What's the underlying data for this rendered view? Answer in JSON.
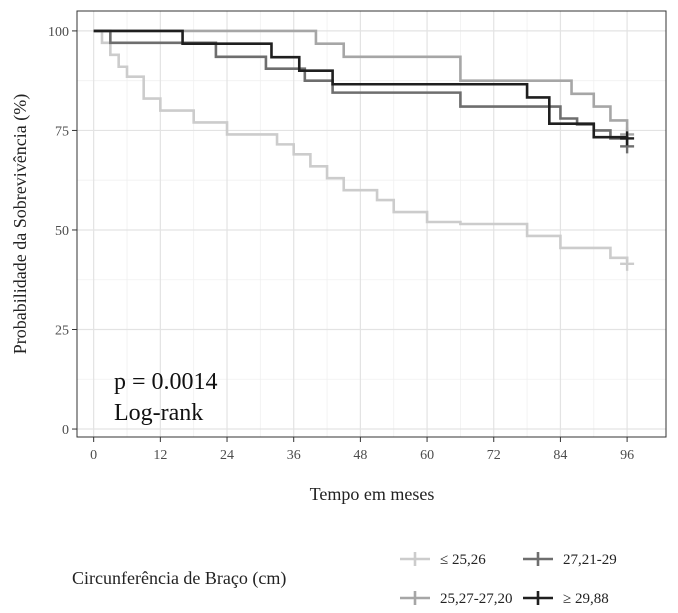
{
  "chart_data": {
    "type": "line",
    "xlabel": "Tempo em meses",
    "ylabel": "Probabilidade da Sobrevivência (%)",
    "xlim": [
      -3,
      103
    ],
    "ylim": [
      -2,
      105
    ],
    "xticks": [
      0,
      12,
      24,
      36,
      48,
      60,
      72,
      84,
      96
    ],
    "yticks": [
      0,
      25,
      50,
      75,
      100
    ],
    "grid": true,
    "annotation": [
      "p = 0.0014",
      "Log-rank"
    ],
    "legend": {
      "title": "Circunferência de Braço (cm)",
      "position": "bottom"
    },
    "series": [
      {
        "name": "≤ 25,26",
        "color": "#cccccc",
        "step_x": [
          0,
          1.5,
          3,
          4.5,
          6,
          9,
          12,
          18,
          24,
          33,
          36,
          39,
          42,
          45,
          51,
          54,
          57,
          60,
          66,
          78,
          84,
          90,
          93,
          96
        ],
        "step_y": [
          100,
          97,
          94,
          91,
          88.5,
          83,
          80,
          77,
          74,
          71.5,
          69,
          66,
          63,
          60,
          57.5,
          54.5,
          54.5,
          52,
          51.5,
          48.5,
          45.5,
          45.5,
          43,
          42
        ],
        "censor_x": [
          96
        ],
        "censor_y": [
          41.5
        ]
      },
      {
        "name": "25,27-27,20",
        "color": "#a6a6a6",
        "step_x": [
          0,
          40,
          45,
          66,
          86,
          90,
          93,
          96
        ],
        "step_y": [
          100,
          96.8,
          93.5,
          87.5,
          84.2,
          81,
          77.5,
          74
        ],
        "censor_x": [
          96
        ],
        "censor_y": [
          74
        ]
      },
      {
        "name": "27,21-29",
        "color": "#6e6e6e",
        "step_x": [
          0,
          3,
          22,
          31,
          38,
          43,
          66,
          84,
          87,
          90,
          93,
          96
        ],
        "step_y": [
          100,
          97,
          93.5,
          90.5,
          87.5,
          84.5,
          81,
          78,
          76.5,
          75,
          73,
          71
        ],
        "censor_x": [
          96
        ],
        "censor_y": [
          71
        ]
      },
      {
        "name": "≥ 29,88",
        "color": "#1f1f1f",
        "step_x": [
          0,
          16,
          32,
          37,
          43,
          78,
          82,
          90,
          93,
          96
        ],
        "step_y": [
          100,
          96.8,
          93.4,
          90,
          86.6,
          83.3,
          76.7,
          73.3,
          73.3,
          73
        ],
        "censor_x": [
          96
        ],
        "censor_y": [
          73
        ]
      }
    ]
  }
}
